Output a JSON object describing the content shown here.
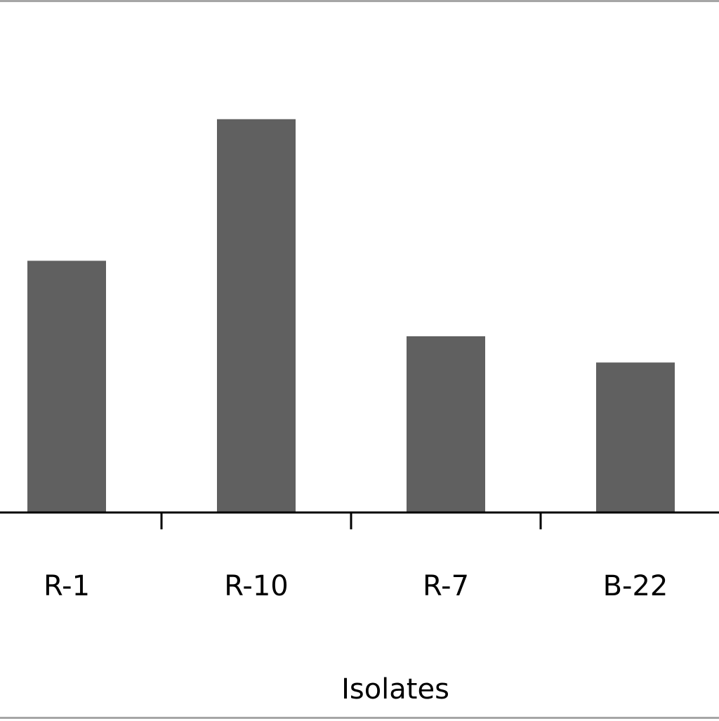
{
  "chart_data": {
    "type": "bar",
    "categories": [
      "R-1",
      "R-10",
      "R-7",
      "B-22"
    ],
    "values": [
      48,
      75,
      33.6,
      28.6
    ],
    "xlabel": "Isolates",
    "ylim": [
      0,
      100
    ],
    "grid": false,
    "bar_color": "#606060",
    "axis_color": "#000000"
  }
}
